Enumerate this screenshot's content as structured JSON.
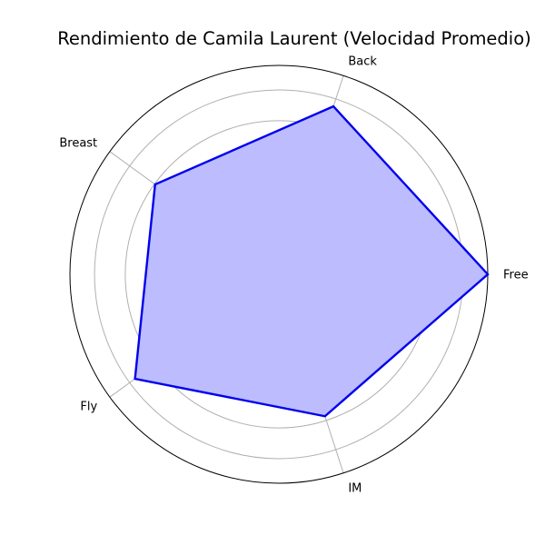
{
  "chart_data": {
    "type": "radar",
    "title": "Rendimiento de Camila Laurent (Velocidad Promedio)",
    "categories": [
      "Free",
      "Back",
      "Breast",
      "Fly",
      "IM"
    ],
    "series": [
      {
        "values": [
          1.68,
          1.42,
          1.23,
          1.43,
          1.2
        ],
        "line_color": "#0000ee",
        "fill_color": "#bcbcff"
      }
    ],
    "rlim": [
      0,
      1.68
    ],
    "grid": true,
    "grid_color": "#b0b0b0",
    "radial_ticks_shown": false
  }
}
